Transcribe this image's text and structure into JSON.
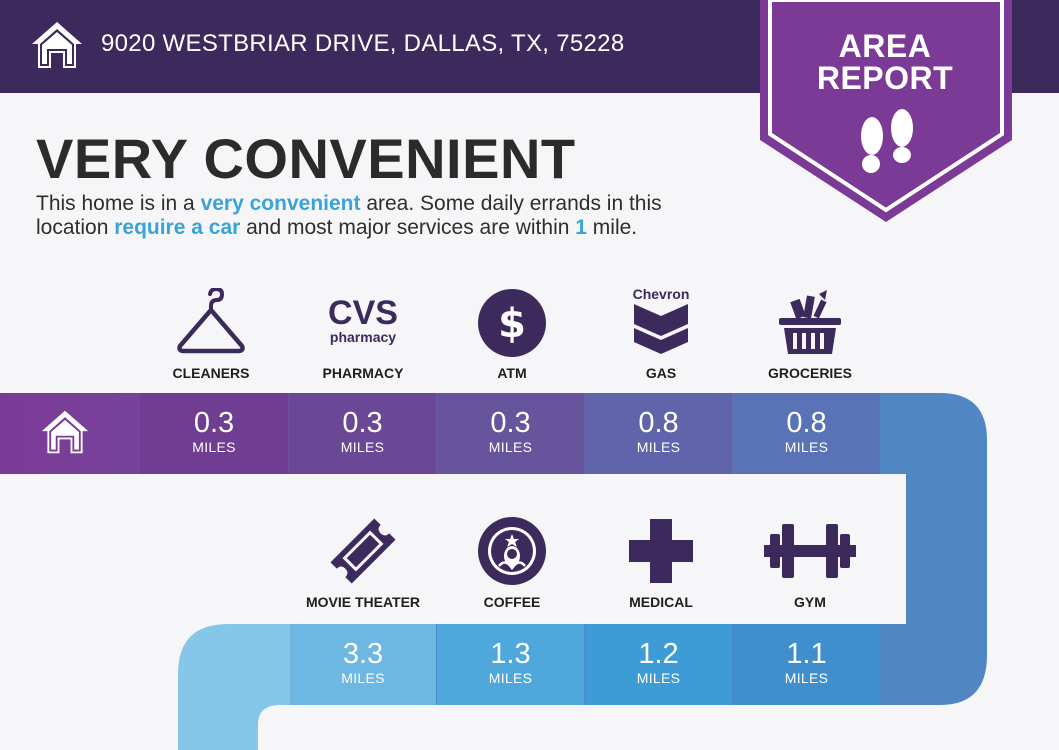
{
  "header": {
    "address": "9020 WESTBRIAR DRIVE, DALLAS, TX, 75228",
    "home_icon": "house-icon"
  },
  "badge": {
    "line1": "AREA",
    "line2": "REPORT",
    "icon": "footprints-icon"
  },
  "rating": {
    "headline": "VERY CONVENIENT",
    "desc_p1": "This home is in a ",
    "desc_h1": "very convenient",
    "desc_p2": " area. Some daily errands in this",
    "desc_p3": "location ",
    "desc_h2": "require a car",
    "desc_p4": " and most major services are within ",
    "desc_h3": "1",
    "desc_p5": " mile."
  },
  "row1": [
    {
      "label": "CLEANERS",
      "icon": "hanger-icon",
      "value": "0.3",
      "unit": "MILES"
    },
    {
      "label": "PHARMACY",
      "icon": "cvs-pharmacy-logo",
      "value": "0.3",
      "unit": "MILES",
      "logo_text_1": "CVS",
      "logo_text_2": "pharmacy"
    },
    {
      "label": "ATM",
      "icon": "dollar-icon",
      "value": "0.3",
      "unit": "MILES"
    },
    {
      "label": "GAS",
      "icon": "chevron-logo",
      "value": "0.8",
      "unit": "MILES",
      "logo_text": "Chevron"
    },
    {
      "label": "GROCERIES",
      "icon": "grocery-basket-icon",
      "value": "0.8",
      "unit": "MILES"
    }
  ],
  "row2": [
    {
      "label": "MOVIE THEATER",
      "icon": "ticket-icon",
      "value": "3.3",
      "unit": "MILES"
    },
    {
      "label": "COFFEE",
      "icon": "starbucks-logo",
      "value": "1.3",
      "unit": "MILES"
    },
    {
      "label": "MEDICAL",
      "icon": "medical-cross-icon",
      "value": "1.2",
      "unit": "MILES"
    },
    {
      "label": "GYM",
      "icon": "dumbbell-icon",
      "value": "1.1",
      "unit": "MILES"
    }
  ],
  "colors": {
    "header_bg": "#3d2a5c",
    "badge": "#7b3a96",
    "accent_text": "#3aa3d8",
    "icon": "#3d2a5c"
  }
}
